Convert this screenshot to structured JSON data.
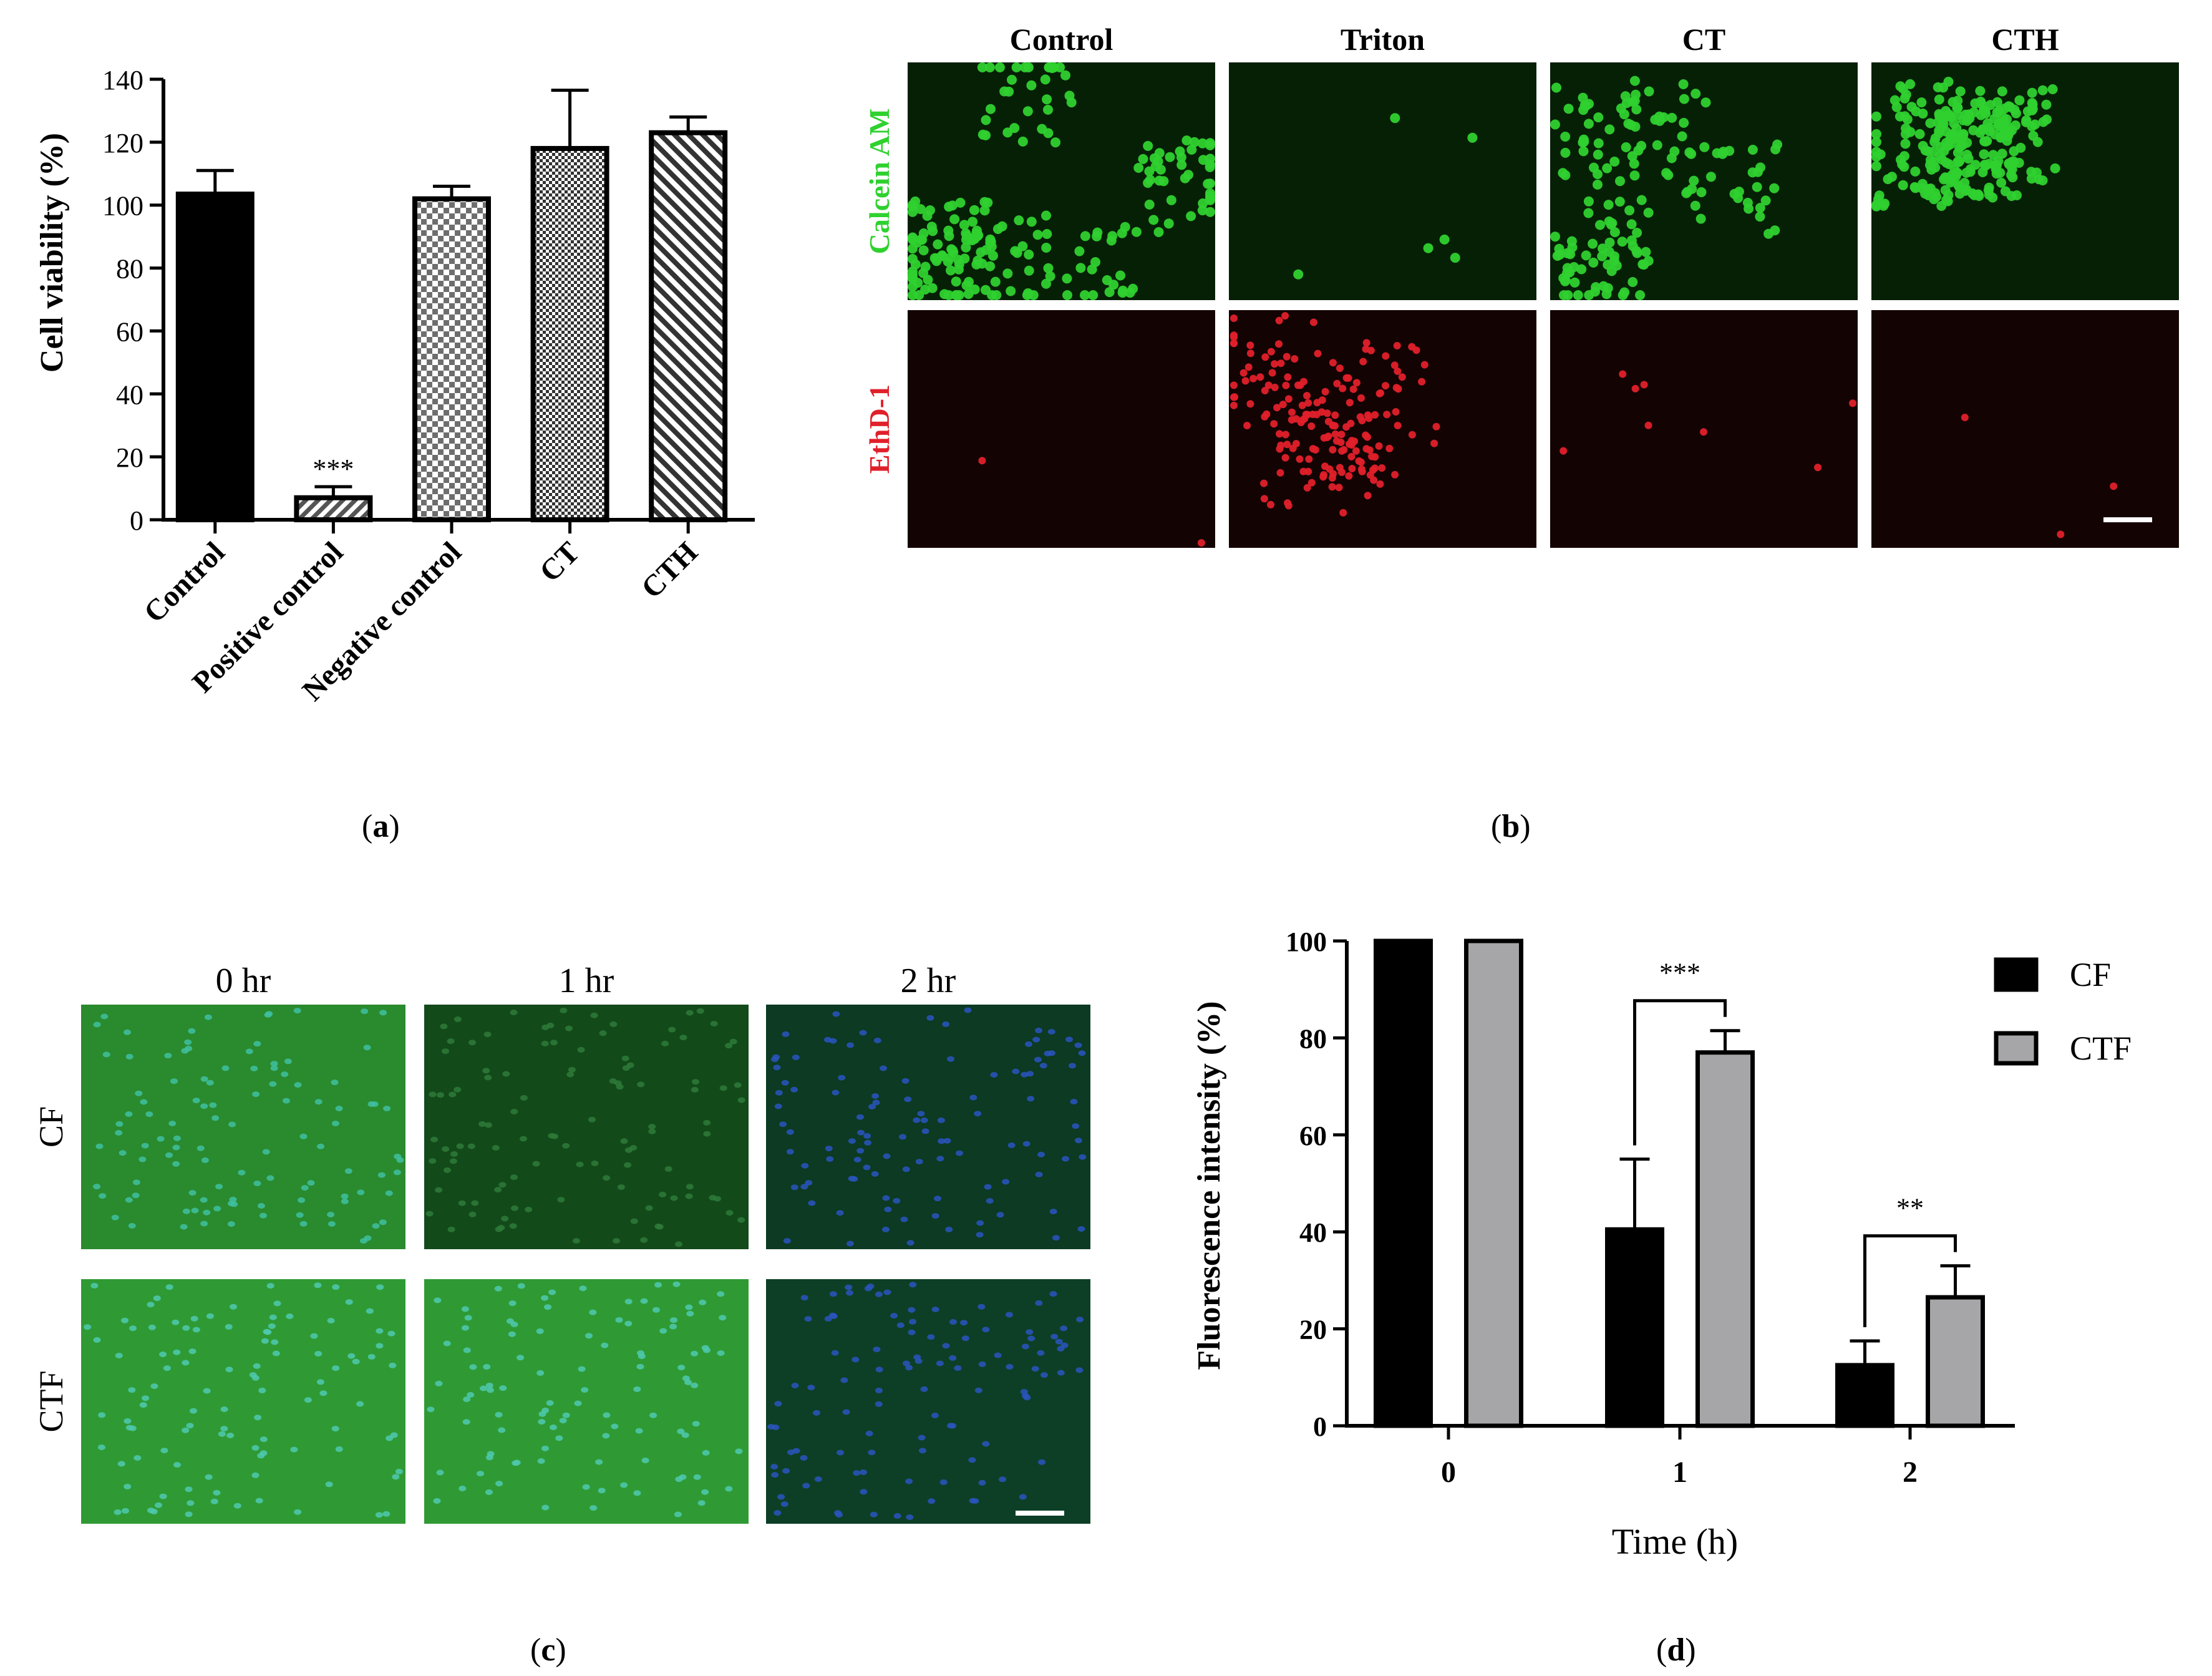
{
  "panel_labels": {
    "a": "a",
    "b": "b",
    "c": "c",
    "d": "d"
  },
  "colors": {
    "bar_black": "#000000",
    "bar_gray": "#a6a6a8",
    "calcein_green": "#2fd12f",
    "ethd_red": "#e0202a",
    "cell_bg_green": "#1f6b1f",
    "cell_bg_dark_green": "#113311",
    "cell_bg_red": "#1a0505",
    "dapi_blue": "#2a5bc4"
  },
  "panel_b": {
    "columns": [
      "Control",
      "Triton",
      "CT",
      "CTH"
    ],
    "rows": [
      "Calcein AM",
      "EthD-1"
    ]
  },
  "panel_c": {
    "columns": [
      "0 hr",
      "1 hr",
      "2 hr"
    ],
    "rows": [
      "CF",
      "CTF"
    ]
  },
  "chart_data": [
    {
      "panel": "a",
      "type": "bar",
      "categories": [
        "Control",
        "Positive control",
        "Negative control",
        "CT",
        "CTH"
      ],
      "values": [
        103.5,
        7.0,
        102.0,
        118.0,
        123.0
      ],
      "errors": [
        7.5,
        3.5,
        4.0,
        18.5,
        5.0
      ],
      "patterns": [
        "solid",
        "diagonal",
        "checker",
        "fine-checker",
        "stripes"
      ],
      "annotations": [
        {
          "category": "Positive control",
          "text": "***"
        }
      ],
      "title": "",
      "xlabel": "",
      "ylabel": "Cell viability (%)",
      "ylim": [
        0,
        140
      ],
      "yticks": [
        0,
        20,
        40,
        60,
        80,
        100,
        120,
        140
      ],
      "grid": false
    },
    {
      "panel": "d",
      "type": "bar",
      "categories": [
        "0",
        "1",
        "2"
      ],
      "series": [
        {
          "name": "CF",
          "values": [
            100,
            40.5,
            12.5
          ],
          "errors": [
            0,
            14.5,
            5.0
          ]
        },
        {
          "name": "CTF",
          "values": [
            100,
            77.0,
            26.5
          ],
          "errors": [
            0,
            4.5,
            6.5
          ]
        }
      ],
      "annotations": [
        {
          "category": "1",
          "text": "***"
        },
        {
          "category": "2",
          "text": "**"
        }
      ],
      "title": "",
      "xlabel": "Time (h)",
      "ylabel": "Fluorescence intensity (%)",
      "ylim": [
        0,
        100
      ],
      "yticks": [
        0,
        20,
        40,
        60,
        80,
        100
      ],
      "legend_position": "top-right",
      "grid": false
    }
  ]
}
